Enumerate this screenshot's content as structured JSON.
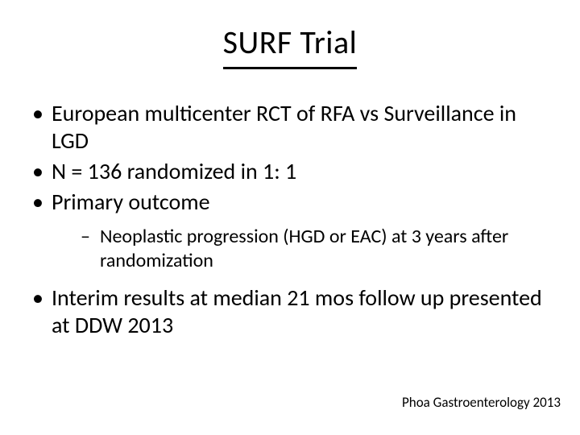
{
  "slide": {
    "title": "SURF Trial",
    "bullets": [
      {
        "text": "European multicenter RCT of RFA vs Surveillance in LGD"
      },
      {
        "text": "N = 136 randomized in 1: 1"
      },
      {
        "text": "Primary outcome",
        "sub": [
          {
            "text": "Neoplastic progression (HGD or EAC) at 3 years after randomization"
          }
        ]
      },
      {
        "text": "Interim results at median 21 mos follow up presented at DDW 2013"
      }
    ],
    "citation": "Phoa Gastroenterology 2013"
  },
  "style": {
    "background_color": "#ffffff",
    "text_color": "#000000",
    "title_fontsize": 40,
    "bullet_fontsize": 28,
    "subbullet_fontsize": 24,
    "citation_fontsize": 17,
    "title_underline_color": "#000000",
    "title_underline_width": 3,
    "font_family": "Calibri"
  }
}
